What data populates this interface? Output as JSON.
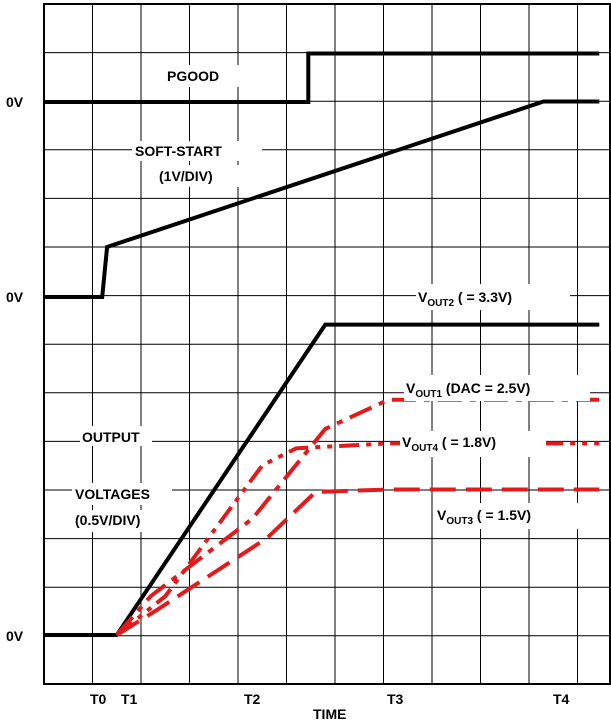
{
  "chart_data": {
    "type": "line",
    "title": "",
    "xlabel": "TIME",
    "x_ticks": [
      "T0",
      "T1",
      "T2",
      "T3",
      "T4"
    ],
    "y_labels": [
      "0V",
      "0V",
      "0V"
    ],
    "grid": true,
    "series": [
      {
        "name": "PGOOD",
        "color": "#000000",
        "style": "solid",
        "points": [
          [
            0,
            0
          ],
          [
            5.45,
            0
          ],
          [
            5.45,
            1
          ],
          [
            11.45,
            1
          ]
        ]
      },
      {
        "name": "SOFT-START",
        "scale": "(1V/DIV)",
        "color": "#000000",
        "style": "solid",
        "points": [
          [
            0,
            0
          ],
          [
            1.2,
            0
          ],
          [
            1.3,
            1.03
          ],
          [
            10.3,
            4.03
          ],
          [
            11.45,
            4.03
          ]
        ]
      },
      {
        "name": "VOUT2",
        "label_main": "V",
        "label_sub": "OUT2",
        "label_rest": " ( = 3.3V)",
        "color": "#000000",
        "style": "solid",
        "points": [
          [
            0,
            0
          ],
          [
            1.5,
            0
          ],
          [
            5.8,
            6.4
          ],
          [
            11.45,
            6.4
          ]
        ]
      },
      {
        "name": "VOUT1",
        "label_main": "V",
        "label_sub": "OUT1",
        "label_rest": " (DAC = 2.5V)",
        "color": "#e31a1c",
        "style": "dashdot",
        "points": [
          [
            1.5,
            0
          ],
          [
            2.2,
            0.8
          ],
          [
            4.3,
            2.4
          ],
          [
            5.8,
            4.25
          ],
          [
            7.1,
            4.85
          ],
          [
            11.45,
            4.85
          ]
        ]
      },
      {
        "name": "VOUT4",
        "label_main": "V",
        "label_sub": "OUT4",
        "label_rest": " ( = 1.8V)",
        "color": "#e31a1c",
        "style": "dashdotdot",
        "points": [
          [
            1.5,
            0
          ],
          [
            2.5,
            0.8
          ],
          [
            4.5,
            3.5
          ],
          [
            5.2,
            3.85
          ],
          [
            7.1,
            3.95
          ],
          [
            11.45,
            3.95
          ]
        ]
      },
      {
        "name": "VOUT3",
        "label_main": "V",
        "label_sub": "OUT3",
        "label_rest": " ( = 1.5V)",
        "color": "#e31a1c",
        "style": "dashed",
        "points": [
          [
            1.5,
            0
          ],
          [
            2.3,
            0.5
          ],
          [
            4.6,
            2.0
          ],
          [
            5.6,
            2.95
          ],
          [
            7.1,
            3.0
          ],
          [
            11.45,
            3.0
          ]
        ]
      }
    ],
    "annotations": {
      "pgood": "PGOOD",
      "softstart_line1": "SOFT-START",
      "softstart_line2": "(1V/DIV)",
      "output_line1": "OUTPUT",
      "output_line2": "VOLTAGES",
      "output_line3": "(0.5V/DIV)"
    }
  }
}
